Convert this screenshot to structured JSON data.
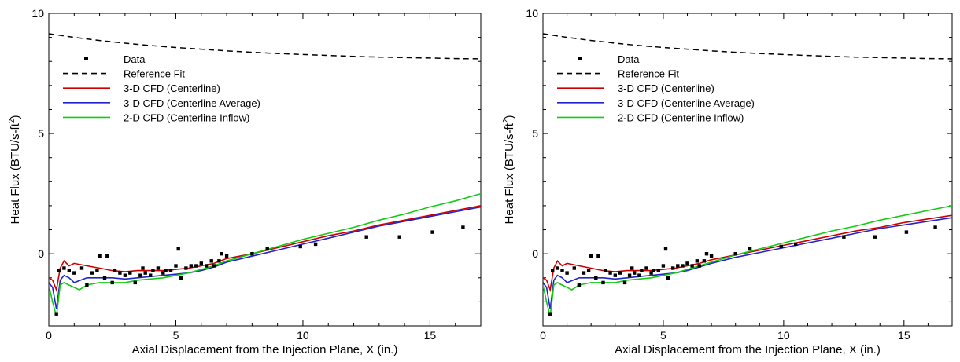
{
  "chart_data": [
    {
      "type": "line",
      "xlabel": "Axial Displacement from the Injection Plane, X (in.)",
      "ylabel_main": "Heat Flux (BTU/s-ft",
      "ylabel_sup": "2",
      "ylabel_close": ")",
      "xlim": [
        0,
        17
      ],
      "ylim": [
        -3,
        10
      ],
      "xticks": [
        0,
        5,
        10,
        15
      ],
      "xtick_labels": [
        "0",
        "5",
        "10",
        "15"
      ],
      "yticks": [
        0,
        5,
        10
      ],
      "ytick_labels": [
        "0",
        "5",
        "10"
      ],
      "legend_position": "upper-left",
      "legend": [
        "Data",
        "Reference Fit",
        "3-D CFD (Centerline)",
        "3-D CFD (Centerline Average)",
        "2-D CFD (Centerline Inflow)"
      ],
      "data_points": {
        "name": "Data",
        "x": [
          0.3,
          0.4,
          0.6,
          0.8,
          1.0,
          1.3,
          1.5,
          1.7,
          1.9,
          2.0,
          2.2,
          2.3,
          2.5,
          2.6,
          2.8,
          3.0,
          3.2,
          3.4,
          3.6,
          3.7,
          3.8,
          4.0,
          4.1,
          4.3,
          4.5,
          4.6,
          4.8,
          5.0,
          5.1,
          5.2,
          5.4,
          5.6,
          5.8,
          6.0,
          6.2,
          6.4,
          6.5,
          6.7,
          6.8,
          7.0,
          8.0,
          8.6,
          9.9,
          10.5,
          12.5,
          13.8,
          15.1,
          16.3
        ],
        "y": [
          -2.5,
          -0.7,
          -0.6,
          -0.7,
          -0.8,
          -0.6,
          -1.3,
          -0.8,
          -0.7,
          -0.1,
          -1.0,
          -0.1,
          -1.2,
          -0.7,
          -0.8,
          -0.9,
          -0.8,
          -1.2,
          -0.9,
          -0.6,
          -0.8,
          -0.9,
          -0.7,
          -0.6,
          -0.8,
          -0.7,
          -0.7,
          -0.5,
          0.2,
          -1.0,
          -0.6,
          -0.5,
          -0.5,
          -0.4,
          -0.5,
          -0.3,
          -0.5,
          -0.3,
          0.0,
          -0.1,
          0.0,
          0.2,
          0.3,
          0.4,
          0.7,
          0.7,
          0.9,
          1.1
        ]
      },
      "series": [
        {
          "name": "Reference Fit",
          "color": "#000000",
          "dash": "dashed",
          "x": [
            0,
            1,
            2,
            3,
            4,
            5,
            6,
            7,
            8,
            9,
            10,
            11,
            12,
            13,
            14,
            15,
            16,
            17
          ],
          "y": [
            9.15,
            9.0,
            8.87,
            8.76,
            8.66,
            8.58,
            8.51,
            8.44,
            8.38,
            8.33,
            8.29,
            8.25,
            8.21,
            8.18,
            8.16,
            8.14,
            8.12,
            8.11
          ]
        },
        {
          "name": "3-D CFD (Centerline)",
          "color": "#cc0000",
          "dash": "solid",
          "x": [
            0,
            0.15,
            0.3,
            0.45,
            0.6,
            0.8,
            1.0,
            1.5,
            2.0,
            2.5,
            3.0,
            3.5,
            4.0,
            4.5,
            5.0,
            5.5,
            6.0,
            6.5,
            7.0,
            8.0,
            9.0,
            10.0,
            11.0,
            12.0,
            13.0,
            14.0,
            15.0,
            16.0,
            17.0
          ],
          "y": [
            -1.0,
            -1.1,
            -1.5,
            -0.6,
            -0.3,
            -0.5,
            -0.4,
            -0.5,
            -0.6,
            -0.7,
            -0.75,
            -0.7,
            -0.7,
            -0.7,
            -0.65,
            -0.6,
            -0.5,
            -0.4,
            -0.2,
            0.0,
            0.25,
            0.5,
            0.75,
            0.95,
            1.2,
            1.4,
            1.6,
            1.8,
            2.0
          ]
        },
        {
          "name": "3-D CFD (Centerline Average)",
          "color": "#2222cc",
          "dash": "solid",
          "x": [
            0,
            0.15,
            0.3,
            0.45,
            0.6,
            0.8,
            1.0,
            1.5,
            2.0,
            2.5,
            3.0,
            3.5,
            4.0,
            4.5,
            5.0,
            5.5,
            6.0,
            6.5,
            7.0,
            8.0,
            9.0,
            10.0,
            11.0,
            12.0,
            13.0,
            14.0,
            15.0,
            16.0,
            17.0
          ],
          "y": [
            -1.2,
            -1.4,
            -2.3,
            -1.1,
            -0.9,
            -1.0,
            -1.2,
            -1.0,
            -1.0,
            -1.0,
            -1.05,
            -1.0,
            -0.95,
            -0.9,
            -0.85,
            -0.8,
            -0.7,
            -0.55,
            -0.35,
            -0.1,
            0.15,
            0.4,
            0.65,
            0.9,
            1.15,
            1.35,
            1.55,
            1.75,
            1.95
          ]
        },
        {
          "name": "2-D CFD (Centerline Inflow)",
          "color": "#11cc11",
          "dash": "solid",
          "x": [
            0,
            0.15,
            0.3,
            0.45,
            0.6,
            0.8,
            1.0,
            1.2,
            1.5,
            2.0,
            2.5,
            3.0,
            3.5,
            4.0,
            4.5,
            5.0,
            5.5,
            6.0,
            6.5,
            7.0,
            8.0,
            9.0,
            10.0,
            11.0,
            12.0,
            13.0,
            14.0,
            15.0,
            16.0,
            17.0
          ],
          "y": [
            -1.3,
            -2.0,
            -2.6,
            -1.3,
            -1.2,
            -1.3,
            -1.4,
            -1.5,
            -1.3,
            -1.2,
            -1.2,
            -1.2,
            -1.1,
            -1.05,
            -1.0,
            -0.9,
            -0.8,
            -0.65,
            -0.5,
            -0.3,
            0.0,
            0.3,
            0.6,
            0.85,
            1.1,
            1.4,
            1.65,
            1.95,
            2.2,
            2.5
          ]
        }
      ]
    },
    {
      "type": "line",
      "xlabel": "Axial Displacement from the Injection Plane, X (in.)",
      "ylabel_main": "Heat Flux (BTU/s-ft",
      "ylabel_sup": "2",
      "ylabel_close": ")",
      "xlim": [
        0,
        17
      ],
      "ylim": [
        -3,
        10
      ],
      "xticks": [
        0,
        5,
        10,
        15
      ],
      "xtick_labels": [
        "0",
        "5",
        "10",
        "15"
      ],
      "yticks": [
        0,
        5,
        10
      ],
      "ytick_labels": [
        "0",
        "5",
        "10"
      ],
      "legend_position": "upper-left",
      "legend": [
        "Data",
        "Reference Fit",
        "3-D CFD (Centerline)",
        "3-D CFD (Centerline Average)",
        "2-D CFD (Centerline Inflow)"
      ],
      "data_points": {
        "name": "Data",
        "x": [
          0.3,
          0.4,
          0.6,
          0.8,
          1.0,
          1.3,
          1.5,
          1.7,
          1.9,
          2.0,
          2.2,
          2.3,
          2.5,
          2.6,
          2.8,
          3.0,
          3.2,
          3.4,
          3.6,
          3.7,
          3.8,
          4.0,
          4.1,
          4.3,
          4.5,
          4.6,
          4.8,
          5.0,
          5.1,
          5.2,
          5.4,
          5.6,
          5.8,
          6.0,
          6.2,
          6.4,
          6.5,
          6.7,
          6.8,
          7.0,
          8.0,
          8.6,
          9.9,
          10.5,
          12.5,
          13.8,
          15.1,
          16.3
        ],
        "y": [
          -2.5,
          -0.7,
          -0.6,
          -0.7,
          -0.8,
          -0.6,
          -1.3,
          -0.8,
          -0.7,
          -0.1,
          -1.0,
          -0.1,
          -1.2,
          -0.7,
          -0.8,
          -0.9,
          -0.8,
          -1.2,
          -0.9,
          -0.6,
          -0.8,
          -0.9,
          -0.7,
          -0.6,
          -0.8,
          -0.7,
          -0.7,
          -0.5,
          0.2,
          -1.0,
          -0.6,
          -0.5,
          -0.5,
          -0.4,
          -0.5,
          -0.3,
          -0.5,
          -0.3,
          0.0,
          -0.1,
          0.0,
          0.2,
          0.3,
          0.4,
          0.7,
          0.7,
          0.9,
          1.1
        ]
      },
      "series": [
        {
          "name": "Reference Fit",
          "color": "#000000",
          "dash": "dashed",
          "x": [
            0,
            1,
            2,
            3,
            4,
            5,
            6,
            7,
            8,
            9,
            10,
            11,
            12,
            13,
            14,
            15,
            16,
            17
          ],
          "y": [
            9.15,
            9.0,
            8.87,
            8.76,
            8.66,
            8.58,
            8.51,
            8.44,
            8.38,
            8.33,
            8.29,
            8.25,
            8.21,
            8.18,
            8.16,
            8.14,
            8.12,
            8.11
          ]
        },
        {
          "name": "3-D CFD (Centerline)",
          "color": "#cc0000",
          "dash": "solid",
          "x": [
            0,
            0.15,
            0.3,
            0.45,
            0.6,
            0.8,
            1.0,
            1.5,
            2.0,
            2.5,
            3.0,
            3.5,
            4.0,
            4.5,
            5.0,
            5.5,
            6.0,
            6.5,
            7.0,
            8.0,
            9.0,
            10.0,
            11.0,
            12.0,
            13.0,
            14.0,
            15.0,
            16.0,
            17.0
          ],
          "y": [
            -1.0,
            -1.1,
            -1.5,
            -0.6,
            -0.3,
            -0.5,
            -0.4,
            -0.5,
            -0.6,
            -0.7,
            -0.75,
            -0.7,
            -0.7,
            -0.7,
            -0.65,
            -0.6,
            -0.5,
            -0.4,
            -0.25,
            -0.05,
            0.15,
            0.35,
            0.55,
            0.75,
            0.95,
            1.1,
            1.3,
            1.45,
            1.6
          ]
        },
        {
          "name": "3-D CFD (Centerline Average)",
          "color": "#2222cc",
          "dash": "solid",
          "x": [
            0,
            0.15,
            0.3,
            0.45,
            0.6,
            0.8,
            1.0,
            1.5,
            2.0,
            2.5,
            3.0,
            3.5,
            4.0,
            4.5,
            5.0,
            5.5,
            6.0,
            6.5,
            7.0,
            8.0,
            9.0,
            10.0,
            11.0,
            12.0,
            13.0,
            14.0,
            15.0,
            16.0,
            17.0
          ],
          "y": [
            -1.2,
            -1.4,
            -2.3,
            -1.1,
            -0.9,
            -1.0,
            -1.2,
            -1.0,
            -1.0,
            -1.0,
            -1.05,
            -1.0,
            -0.95,
            -0.9,
            -0.85,
            -0.8,
            -0.7,
            -0.55,
            -0.4,
            -0.15,
            0.05,
            0.25,
            0.45,
            0.65,
            0.85,
            1.05,
            1.2,
            1.35,
            1.5
          ]
        },
        {
          "name": "2-D CFD (Centerline Inflow)",
          "color": "#11cc11",
          "dash": "solid",
          "x": [
            0,
            0.15,
            0.3,
            0.45,
            0.6,
            0.8,
            1.0,
            1.2,
            1.5,
            2.0,
            2.5,
            3.0,
            3.5,
            4.0,
            4.5,
            5.0,
            5.5,
            6.0,
            6.5,
            7.0,
            8.0,
            9.0,
            10.0,
            11.0,
            12.0,
            13.0,
            14.0,
            15.0,
            16.0,
            17.0
          ],
          "y": [
            -1.3,
            -2.0,
            -2.6,
            -1.3,
            -1.2,
            -1.3,
            -1.4,
            -1.5,
            -1.3,
            -1.2,
            -1.2,
            -1.2,
            -1.1,
            -1.05,
            -1.0,
            -0.9,
            -0.8,
            -0.65,
            -0.5,
            -0.35,
            -0.05,
            0.2,
            0.45,
            0.7,
            0.95,
            1.15,
            1.4,
            1.6,
            1.8,
            2.0
          ]
        }
      ]
    }
  ]
}
